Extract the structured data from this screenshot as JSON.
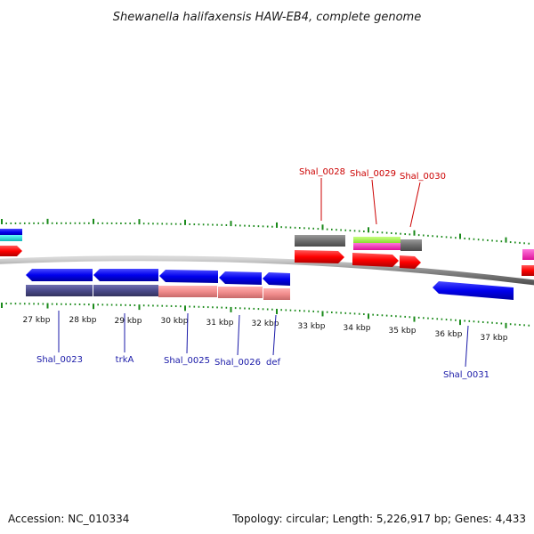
{
  "title": "Shewanella halifaxensis HAW-EB4, complete genome",
  "footer": {
    "accession": "Accession: NC_010334",
    "summary": "Topology: circular; Length: 5,226,917 bp; Genes: 4,433"
  },
  "kbp_labels": [
    "27 kbp",
    "28 kbp",
    "29 kbp",
    "30 kbp",
    "31 kbp",
    "32 kbp",
    "33 kbp",
    "34 kbp",
    "35 kbp",
    "36 kbp",
    "37 kbp"
  ],
  "gene_labels_top": [
    "Shal_0028",
    "Shal_0029",
    "Shal_0030"
  ],
  "gene_labels_bottom": [
    "Shal_0023",
    "trkA",
    "Shal_0025",
    "Shal_0026",
    "def",
    "Shal_0031"
  ],
  "colors": {
    "forward_cds": "#ff0000",
    "reverse_cds": "#0000ee",
    "gene_grey": "#6e6e6e",
    "gene_purple": "#4a4a8a",
    "gene_pink": "#f08c8c",
    "gene_green": "#99ee44",
    "gene_magenta": "#ff33cc",
    "gene_cyan": "#22dddd",
    "tick": "#1a8a1a",
    "backbone": "#8a8a8a"
  }
}
